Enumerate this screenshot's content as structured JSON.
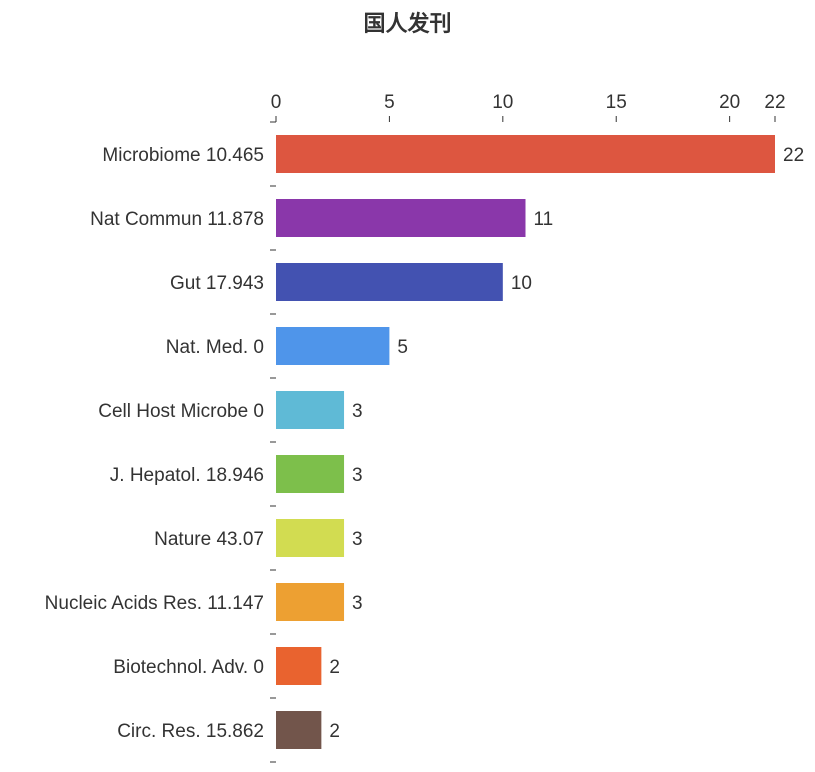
{
  "chart_data": {
    "type": "bar",
    "orientation": "horizontal",
    "title": "国人发刊",
    "categories": [
      "Microbiome 10.465",
      "Nat Commun 11.878",
      "Gut 17.943",
      "Nat. Med. 0",
      "Cell Host Microbe 0",
      "J. Hepatol. 18.946",
      "Nature 43.07",
      "Nucleic Acids Res. 11.147",
      "Biotechnol. Adv. 0",
      "Circ. Res. 15.862"
    ],
    "values": [
      22,
      11,
      10,
      5,
      3,
      3,
      3,
      3,
      2,
      2
    ],
    "colors": [
      "#dd5640",
      "#8a37aa",
      "#4352b1",
      "#4f95ea",
      "#5fbad6",
      "#7dbf4b",
      "#d2dc51",
      "#eda032",
      "#e9632f",
      "#72554b"
    ],
    "x_ticks": [
      "0",
      "5",
      "10",
      "15",
      "20",
      "22"
    ],
    "xlim": [
      0,
      22
    ],
    "x_axis_position": "top",
    "data_labels": [
      "22",
      "11",
      "10",
      "5",
      "3",
      "3",
      "3",
      "3",
      "2",
      "2"
    ],
    "grid": false,
    "legend": "none"
  }
}
